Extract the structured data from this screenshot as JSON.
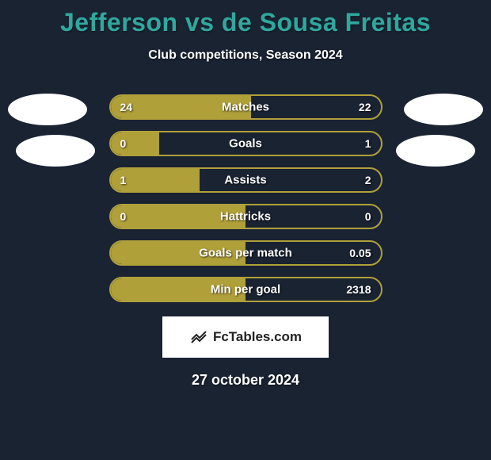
{
  "page": {
    "title": "Jefferson vs de Sousa Freitas",
    "subtitle": "Club competitions, Season 2024",
    "date": "27 october 2024",
    "background_color": "#1a2332",
    "title_color": "#2fa89e",
    "text_color": "#ffffff"
  },
  "brand": {
    "text": "FcTables.com",
    "icon_name": "chart-line-icon",
    "box_bg": "#ffffff",
    "text_color": "#222222"
  },
  "chart": {
    "type": "dual-bar-comparison",
    "pill_border_color": "#b0a03a",
    "pill_fill_color": "#b0a03a",
    "pill_bg_color": "#1a2332",
    "pill_height": 32,
    "pill_border_radius": 16,
    "label_fontsize": 15,
    "value_fontsize": 14,
    "rows": [
      {
        "label": "Matches",
        "left": "24",
        "right": "22",
        "left_pct": 52,
        "right_pct": 48
      },
      {
        "label": "Goals",
        "left": "0",
        "right": "1",
        "left_pct": 18,
        "right_pct": 82
      },
      {
        "label": "Assists",
        "left": "1",
        "right": "2",
        "left_pct": 33,
        "right_pct": 67
      },
      {
        "label": "Hattricks",
        "left": "0",
        "right": "0",
        "left_pct": 50,
        "right_pct": 50
      },
      {
        "label": "Goals per match",
        "left": "",
        "right": "0.05",
        "left_pct": 50,
        "right_pct": 50
      },
      {
        "label": "Min per goal",
        "left": "",
        "right": "2318",
        "left_pct": 50,
        "right_pct": 50
      }
    ]
  },
  "avatars": {
    "shape": "ellipse",
    "color": "#ffffff"
  }
}
